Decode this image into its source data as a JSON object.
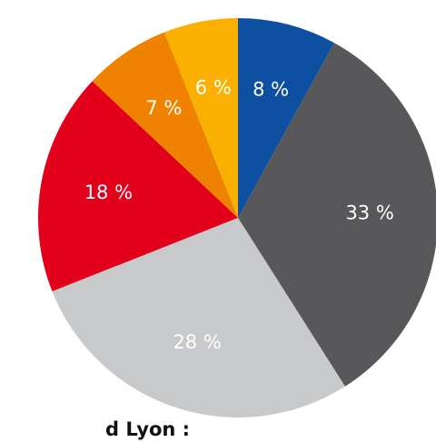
{
  "chart_data": {
    "type": "pie",
    "values": [
      8,
      33,
      28,
      18,
      7,
      6
    ],
    "value_labels": [
      "8 %",
      "33 %",
      "28 %",
      "18 %",
      "7 %",
      "6 %"
    ],
    "colors": [
      "#0d4fa0",
      "#58585a",
      "#c8c9cb",
      "#e2001a",
      "#ef8200",
      "#f9b000"
    ],
    "caption": "d Lyon :"
  }
}
